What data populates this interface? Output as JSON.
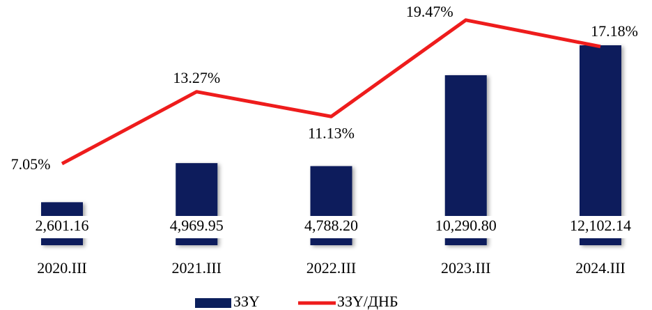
{
  "chart_data": {
    "type": "bar-line",
    "categories": [
      "2020.III",
      "2021.III",
      "2022.III",
      "2023.III",
      "2024.III"
    ],
    "series": [
      {
        "name": "ЗЗҮ",
        "type": "bar",
        "color": "#0b1f5c",
        "values": [
          2601.16,
          4969.95,
          4788.2,
          10290.8,
          12102.14
        ],
        "value_labels": [
          "2,601.16",
          "4,969.95",
          "4,788.20",
          "10,290.80",
          "12,102.14"
        ]
      },
      {
        "name": "ЗЗҮ/ДНБ",
        "type": "line",
        "axis": "y2",
        "color": "#ee1c1c",
        "values": [
          7.05,
          13.27,
          11.13,
          19.47,
          17.18
        ],
        "value_labels": [
          "7.05%",
          "13.27%",
          "11.13%",
          "19.47%",
          "17.18%"
        ]
      }
    ],
    "ylim": [
      0,
      14000
    ],
    "y2lim": [
      0,
      20
    ],
    "legend": "bottom"
  }
}
